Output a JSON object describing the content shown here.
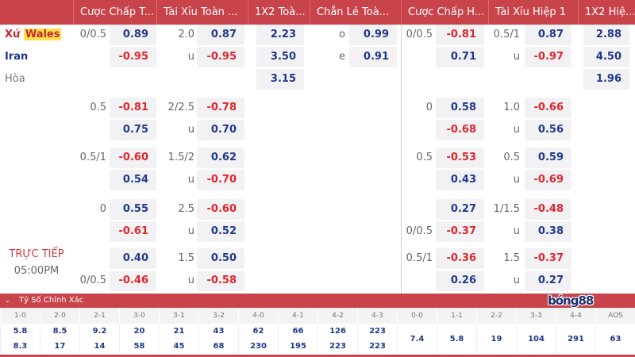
{
  "headers": [
    "",
    "Cược Chấp T...",
    "Tài Xỉu Toàn ...",
    "1X2 Toà...",
    "Chẵn Lẻ Toà...",
    "Cược Chấp H...",
    "Tài Xỉu Hiệp 1",
    "1X2 Hiệ..."
  ],
  "teams": {
    "home_prefix": "Xứ",
    "home_name": "Wales",
    "away": "Iran",
    "draw": "Hòa"
  },
  "live": {
    "status": "TRỰC TIẾP",
    "time": "05:00PM"
  },
  "groups": [
    {
      "rows": [
        {
          "hl": "0/0.5",
          "ho": "0.89",
          "ol": "2.0",
          "oo": "0.87",
          "x": "2.23",
          "el": "o",
          "eo": "0.99",
          "h1l": "0/0.5",
          "h1o": "-0.81",
          "o1l": "0.5/1",
          "o1o": "0.87",
          "x1": "2.88"
        },
        {
          "hl": "",
          "ho": "-0.95",
          "ol": "u",
          "oo": "-0.95",
          "x": "3.50",
          "el": "e",
          "eo": "0.91",
          "h1l": "",
          "h1o": "0.71",
          "o1l": "u",
          "o1o": "-0.97",
          "x1": "4.50"
        },
        {
          "hl": "",
          "ho": "",
          "ol": "",
          "oo": "",
          "x": "3.15",
          "el": "",
          "eo": "",
          "h1l": "",
          "h1o": "",
          "o1l": "",
          "o1o": "",
          "x1": "1.96"
        }
      ]
    },
    {
      "rows": [
        {
          "hl": "0.5",
          "ho": "-0.81",
          "ol": "2/2.5",
          "oo": "-0.78",
          "h1l": "0",
          "h1o": "0.58",
          "o1l": "1.0",
          "o1o": "-0.66"
        },
        {
          "hl": "",
          "ho": "0.75",
          "ol": "u",
          "oo": "0.70",
          "h1l": "",
          "h1o": "-0.68",
          "o1l": "u",
          "o1o": "0.56"
        }
      ]
    },
    {
      "rows": [
        {
          "hl": "0.5/1",
          "ho": "-0.60",
          "ol": "1.5/2",
          "oo": "0.62",
          "h1l": "0.5",
          "h1o": "-0.53",
          "o1l": "0.5",
          "o1o": "0.59"
        },
        {
          "hl": "",
          "ho": "0.54",
          "ol": "u",
          "oo": "-0.70",
          "h1l": "",
          "h1o": "0.43",
          "o1l": "u",
          "o1o": "-0.69"
        }
      ]
    },
    {
      "rows": [
        {
          "hl": "0",
          "ho": "0.55",
          "ol": "2.5",
          "oo": "-0.60",
          "h1l": "",
          "h1o": "0.27",
          "o1l": "1/1.5",
          "o1o": "-0.48"
        },
        {
          "hl": "",
          "ho": "-0.61",
          "ol": "u",
          "oo": "0.52",
          "h1l": "0/0.5",
          "h1o": "-0.37",
          "o1l": "u",
          "o1o": "0.38"
        }
      ]
    },
    {
      "rows": [
        {
          "hl": "",
          "ho": "0.40",
          "ol": "1.5",
          "oo": "0.50",
          "h1l": "0.5/1",
          "h1o": "-0.36",
          "o1l": "1.5",
          "o1o": "-0.37"
        },
        {
          "hl": "0/0.5",
          "ho": "-0.46",
          "ol": "u",
          "oo": "-0.58",
          "h1l": "",
          "h1o": "0.26",
          "o1l": "u",
          "o1o": "0.27"
        }
      ]
    }
  ],
  "correct_score": {
    "title": "Tỷ Số Chính Xác",
    "columns": [
      {
        "label": "1-0",
        "v": [
          "5.8",
          "8.3"
        ]
      },
      {
        "label": "2-0",
        "v": [
          "8.5",
          "17"
        ]
      },
      {
        "label": "2-1",
        "v": [
          "9.2",
          "14"
        ]
      },
      {
        "label": "3-0",
        "v": [
          "20",
          "58"
        ]
      },
      {
        "label": "3-1",
        "v": [
          "21",
          "45"
        ]
      },
      {
        "label": "3-2",
        "v": [
          "43",
          "68"
        ]
      },
      {
        "label": "4-0",
        "v": [
          "62",
          "230"
        ]
      },
      {
        "label": "4-1",
        "v": [
          "66",
          "195"
        ]
      },
      {
        "label": "4-2",
        "v": [
          "126",
          "223"
        ]
      },
      {
        "label": "4-3",
        "v": [
          "223",
          "223"
        ]
      },
      {
        "label": "0-0",
        "v": [
          "7.4"
        ]
      },
      {
        "label": "1-1",
        "v": [
          "5.8"
        ]
      },
      {
        "label": "2-2",
        "v": [
          "19"
        ]
      },
      {
        "label": "3-3",
        "v": [
          "104"
        ]
      },
      {
        "label": "4-4",
        "v": [
          "291"
        ]
      },
      {
        "label": "AOS",
        "v": [
          "63"
        ]
      }
    ]
  },
  "logo": "bóng88",
  "colors": {
    "header": "#c9434b",
    "positive": "#1f3a88",
    "negative": "#e0252c"
  }
}
